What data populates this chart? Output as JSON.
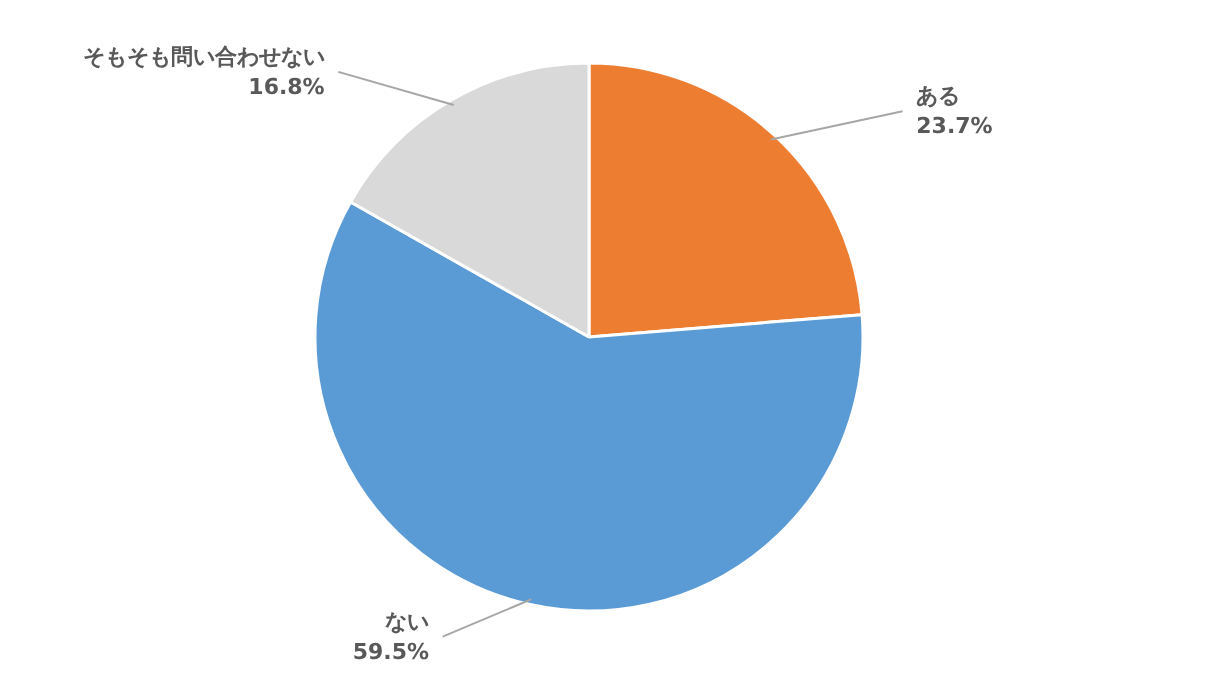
{
  "chart_data": {
    "type": "pie",
    "categories": [
      "ある",
      "ない",
      "そもそも問い合わせない"
    ],
    "values": [
      23.7,
      59.5,
      16.8
    ],
    "colors": [
      "#ed7d31",
      "#5b9bd5",
      "#d9d9d9"
    ],
    "value_labels": [
      "23.7%",
      "59.5%",
      "16.8%"
    ]
  }
}
